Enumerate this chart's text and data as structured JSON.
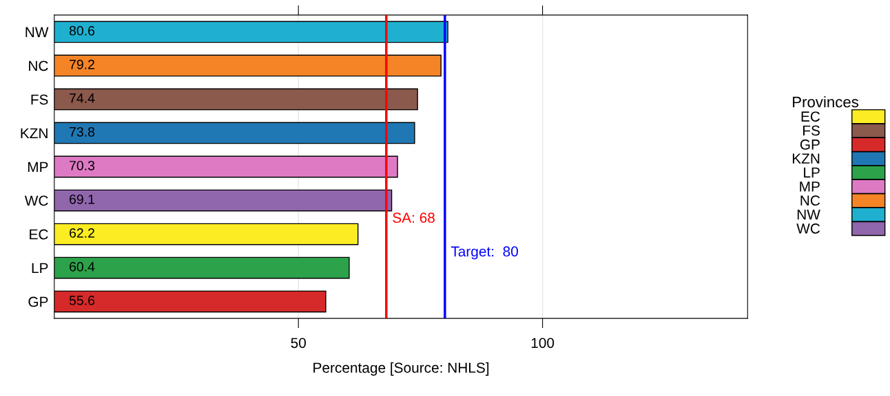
{
  "chart_data": {
    "type": "bar",
    "orientation": "horizontal",
    "categories": [
      "NW",
      "NC",
      "FS",
      "KZN",
      "MP",
      "WC",
      "EC",
      "LP",
      "GP"
    ],
    "series": [
      {
        "name": "EC",
        "color": "#fbec24",
        "values": [
          null,
          null,
          null,
          null,
          null,
          null,
          62.2,
          null,
          null
        ]
      },
      {
        "name": "FS",
        "color": "#8c594d",
        "values": [
          null,
          null,
          74.4,
          null,
          null,
          null,
          null,
          null,
          null
        ]
      },
      {
        "name": "GP",
        "color": "#d62a2a",
        "values": [
          null,
          null,
          null,
          null,
          null,
          null,
          null,
          null,
          55.6
        ]
      },
      {
        "name": "KZN",
        "color": "#1f78b4",
        "values": [
          null,
          null,
          null,
          73.8,
          null,
          null,
          null,
          null,
          null
        ]
      },
      {
        "name": "LP",
        "color": "#2ca24b",
        "values": [
          null,
          null,
          null,
          null,
          null,
          null,
          null,
          60.4,
          null
        ]
      },
      {
        "name": "MP",
        "color": "#de7ac3",
        "values": [
          null,
          null,
          null,
          null,
          70.3,
          null,
          null,
          null,
          null
        ]
      },
      {
        "name": "NC",
        "color": "#f58426",
        "values": [
          null,
          79.2,
          null,
          null,
          null,
          null,
          null,
          null,
          null
        ]
      },
      {
        "name": "NW",
        "color": "#1fb0d0",
        "values": [
          80.6,
          null,
          null,
          null,
          null,
          null,
          null,
          null,
          null
        ]
      },
      {
        "name": "WC",
        "color": "#9066ad",
        "values": [
          null,
          null,
          null,
          null,
          null,
          69.1,
          null,
          null,
          null
        ]
      }
    ],
    "data_labels": true,
    "xlabel": "Percentage [Source: NHLS]",
    "xlim": [
      0,
      142
    ],
    "xticks": [
      50,
      100
    ],
    "grid": "x",
    "legend": "right",
    "legend_title": "Provinces",
    "ref_lines": [
      {
        "axis": "x",
        "value": 68,
        "label": "SA: 68",
        "color": "#ff0000"
      },
      {
        "axis": "x",
        "value": 80,
        "label": "Target:  80",
        "color": "#0000ff"
      }
    ]
  }
}
